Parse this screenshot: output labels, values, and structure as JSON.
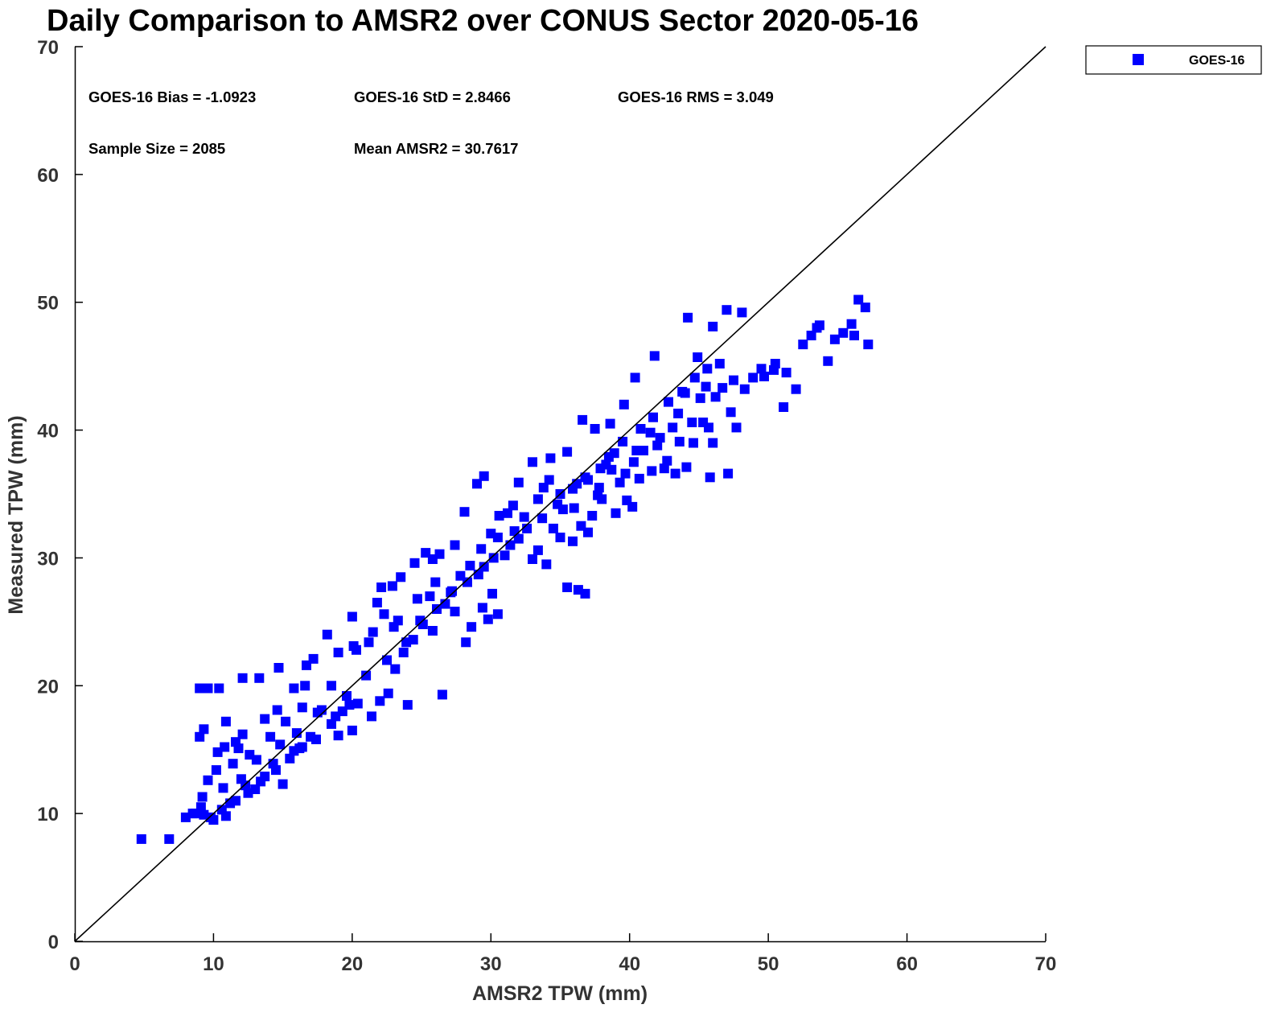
{
  "chart_data": {
    "type": "scatter",
    "title": "Daily Comparison to AMSR2 over CONUS Sector 2020-05-16",
    "xlabel": "AMSR2 TPW (mm)",
    "ylabel": "Measured TPW (mm)",
    "xlim": [
      0,
      70
    ],
    "ylim": [
      0,
      70
    ],
    "xticks": [
      0,
      10,
      20,
      30,
      40,
      50,
      60,
      70
    ],
    "yticks": [
      0,
      10,
      20,
      30,
      40,
      50,
      60,
      70
    ],
    "xtick_labels": [
      "0",
      "10",
      "20",
      "30",
      "40",
      "50",
      "60",
      "70"
    ],
    "ytick_labels": [
      "0",
      "10",
      "20",
      "30",
      "40",
      "50",
      "60",
      "70"
    ],
    "grid": false,
    "legend_position": "outside-top-right",
    "reference_line": {
      "name": "1:1 line",
      "x": [
        0,
        70
      ],
      "y": [
        0,
        70
      ],
      "color": "#000000"
    },
    "stats": {
      "bias": "GOES-16 Bias = -1.0923",
      "std": "GOES-16 StD = 2.8466",
      "rms": "GOES-16 RMS = 3.049",
      "sample_size": "Sample Size = 2085",
      "mean": "Mean AMSR2 = 30.7617"
    },
    "series": [
      {
        "name": "GOES-16",
        "color": "#0000ff",
        "marker": "square",
        "points": [
          [
            4.8,
            8.0
          ],
          [
            6.8,
            8.0
          ],
          [
            8.0,
            9.7
          ],
          [
            8.7,
            10.0
          ],
          [
            9.2,
            11.3
          ],
          [
            9.0,
            16.0
          ],
          [
            9.3,
            16.6
          ],
          [
            9.0,
            19.8
          ],
          [
            9.6,
            19.8
          ],
          [
            10.4,
            19.8
          ],
          [
            10.3,
            14.8
          ],
          [
            10.0,
            9.5
          ],
          [
            10.7,
            12.0
          ],
          [
            10.9,
            17.2
          ],
          [
            11.4,
            13.9
          ],
          [
            11.8,
            15.1
          ],
          [
            12.3,
            12.2
          ],
          [
            12.6,
            14.6
          ],
          [
            13.0,
            11.9
          ],
          [
            13.7,
            12.9
          ],
          [
            14.3,
            13.9
          ],
          [
            14.8,
            15.4
          ],
          [
            14.7,
            21.4
          ],
          [
            13.3,
            20.6
          ],
          [
            12.1,
            20.6
          ],
          [
            15.0,
            12.3
          ],
          [
            15.8,
            14.9
          ],
          [
            16.4,
            15.2
          ],
          [
            16.4,
            18.3
          ],
          [
            17.0,
            16.0
          ],
          [
            17.5,
            17.9
          ],
          [
            16.7,
            21.6
          ],
          [
            17.2,
            22.1
          ],
          [
            18.5,
            20.0
          ],
          [
            19.0,
            16.1
          ],
          [
            19.3,
            18.0
          ],
          [
            20.0,
            16.5
          ],
          [
            20.4,
            18.6
          ],
          [
            21.4,
            17.6
          ],
          [
            22.0,
            18.8
          ],
          [
            21.2,
            23.4
          ],
          [
            20.3,
            22.8
          ],
          [
            20.0,
            25.4
          ],
          [
            21.8,
            26.5
          ],
          [
            22.1,
            27.7
          ],
          [
            22.9,
            27.8
          ],
          [
            23.3,
            25.1
          ],
          [
            23.1,
            21.3
          ],
          [
            23.7,
            22.6
          ],
          [
            24.4,
            23.6
          ],
          [
            25.1,
            24.8
          ],
          [
            25.6,
            27.0
          ],
          [
            26.0,
            28.1
          ],
          [
            25.8,
            29.9
          ],
          [
            26.3,
            30.3
          ],
          [
            27.2,
            27.4
          ],
          [
            27.4,
            25.8
          ],
          [
            28.2,
            23.4
          ],
          [
            28.6,
            24.6
          ],
          [
            29.4,
            26.1
          ],
          [
            30.1,
            27.2
          ],
          [
            29.1,
            28.7
          ],
          [
            29.3,
            30.7
          ],
          [
            30.5,
            31.6
          ],
          [
            31.2,
            33.5
          ],
          [
            31.7,
            32.1
          ],
          [
            32.4,
            33.2
          ],
          [
            32.0,
            35.9
          ],
          [
            33.4,
            34.6
          ],
          [
            33.8,
            35.5
          ],
          [
            34.2,
            36.1
          ],
          [
            33.4,
            30.6
          ],
          [
            34.0,
            29.5
          ],
          [
            35.0,
            31.6
          ],
          [
            35.9,
            31.3
          ],
          [
            36.3,
            27.5
          ],
          [
            35.5,
            27.7
          ],
          [
            36.5,
            32.5
          ],
          [
            37.3,
            33.3
          ],
          [
            37.0,
            36.1
          ],
          [
            37.8,
            35.5
          ],
          [
            38.3,
            37.3
          ],
          [
            38.7,
            36.9
          ],
          [
            39.3,
            35.9
          ],
          [
            39.8,
            34.5
          ],
          [
            40.2,
            34.0
          ],
          [
            40.3,
            37.5
          ],
          [
            41.0,
            38.4
          ],
          [
            41.6,
            36.8
          ],
          [
            42.2,
            39.4
          ],
          [
            43.1,
            40.2
          ],
          [
            42.7,
            37.6
          ],
          [
            43.6,
            39.1
          ],
          [
            44.1,
            37.1
          ],
          [
            44.6,
            39.0
          ],
          [
            45.3,
            40.6
          ],
          [
            45.1,
            42.5
          ],
          [
            45.7,
            40.2
          ],
          [
            46.2,
            42.6
          ],
          [
            46.7,
            43.3
          ],
          [
            47.3,
            41.4
          ],
          [
            47.1,
            36.6
          ],
          [
            45.8,
            36.3
          ],
          [
            47.7,
            40.2
          ],
          [
            48.3,
            43.2
          ],
          [
            48.9,
            44.1
          ],
          [
            49.7,
            44.2
          ],
          [
            50.4,
            44.7
          ],
          [
            51.3,
            44.5
          ],
          [
            52.0,
            43.2
          ],
          [
            51.1,
            41.8
          ],
          [
            52.5,
            46.7
          ],
          [
            53.1,
            47.4
          ],
          [
            53.7,
            48.2
          ],
          [
            54.3,
            45.4
          ],
          [
            55.4,
            47.6
          ],
          [
            56.0,
            48.3
          ],
          [
            56.5,
            50.2
          ],
          [
            57.0,
            49.6
          ],
          [
            57.2,
            46.7
          ],
          [
            56.2,
            47.4
          ],
          [
            44.2,
            48.8
          ],
          [
            46.0,
            48.1
          ],
          [
            47.0,
            49.4
          ],
          [
            48.1,
            49.2
          ],
          [
            44.9,
            45.7
          ],
          [
            41.8,
            45.8
          ],
          [
            40.4,
            44.1
          ],
          [
            39.6,
            42.0
          ],
          [
            38.6,
            40.5
          ],
          [
            37.5,
            40.1
          ],
          [
            36.6,
            40.8
          ],
          [
            35.5,
            38.3
          ],
          [
            34.3,
            37.8
          ],
          [
            33.0,
            37.5
          ],
          [
            31.6,
            34.1
          ],
          [
            30.6,
            33.3
          ],
          [
            29.0,
            35.8
          ],
          [
            29.5,
            36.4
          ],
          [
            28.1,
            33.6
          ],
          [
            27.4,
            31.0
          ],
          [
            25.3,
            30.4
          ],
          [
            24.5,
            29.6
          ],
          [
            23.5,
            28.5
          ],
          [
            20.1,
            23.1
          ],
          [
            19.0,
            22.6
          ],
          [
            18.2,
            24.0
          ],
          [
            16.6,
            20.0
          ],
          [
            15.8,
            19.8
          ],
          [
            14.6,
            18.1
          ],
          [
            13.7,
            17.4
          ],
          [
            12.1,
            16.2
          ],
          [
            11.6,
            15.6
          ],
          [
            10.8,
            15.2
          ],
          [
            10.2,
            13.4
          ],
          [
            9.6,
            12.6
          ],
          [
            9.1,
            10.5
          ],
          [
            8.5,
            10.0
          ],
          [
            9.8,
            9.7
          ],
          [
            10.9,
            9.8
          ],
          [
            11.6,
            11.0
          ],
          [
            12.0,
            12.7
          ],
          [
            13.1,
            14.2
          ],
          [
            14.1,
            16.0
          ],
          [
            15.2,
            17.2
          ],
          [
            16.0,
            16.3
          ],
          [
            17.8,
            18.1
          ],
          [
            18.5,
            17.0
          ],
          [
            19.6,
            19.2
          ],
          [
            21.0,
            20.8
          ],
          [
            22.5,
            22.0
          ],
          [
            23.9,
            23.4
          ],
          [
            24.9,
            25.1
          ],
          [
            26.1,
            26.0
          ],
          [
            27.1,
            27.3
          ],
          [
            28.3,
            28.1
          ],
          [
            29.5,
            29.3
          ],
          [
            30.2,
            30.0
          ],
          [
            31.4,
            31.0
          ],
          [
            32.6,
            32.3
          ],
          [
            33.7,
            33.1
          ],
          [
            34.8,
            34.2
          ],
          [
            35.9,
            35.4
          ],
          [
            36.8,
            36.3
          ],
          [
            37.9,
            37.0
          ],
          [
            38.9,
            38.2
          ],
          [
            39.5,
            39.1
          ],
          [
            40.8,
            40.1
          ],
          [
            41.7,
            41.0
          ],
          [
            42.8,
            42.2
          ],
          [
            43.8,
            43.0
          ],
          [
            44.7,
            44.1
          ],
          [
            45.6,
            44.8
          ],
          [
            46.5,
            45.2
          ],
          [
            35.0,
            35.0
          ],
          [
            34.5,
            32.3
          ],
          [
            36.0,
            33.9
          ],
          [
            37.0,
            32.0
          ],
          [
            38.0,
            34.6
          ],
          [
            39.0,
            33.5
          ],
          [
            38.5,
            37.9
          ],
          [
            40.5,
            38.4
          ],
          [
            41.5,
            39.8
          ],
          [
            42.5,
            37.0
          ],
          [
            43.5,
            41.3
          ],
          [
            44.0,
            42.9
          ],
          [
            45.5,
            43.4
          ],
          [
            46.0,
            39.0
          ],
          [
            32.0,
            31.5
          ],
          [
            33.0,
            29.9
          ],
          [
            31.0,
            30.2
          ],
          [
            30.0,
            31.9
          ],
          [
            28.5,
            29.4
          ],
          [
            27.8,
            28.6
          ],
          [
            26.7,
            26.4
          ],
          [
            25.8,
            24.3
          ],
          [
            24.7,
            26.8
          ],
          [
            23.0,
            24.6
          ],
          [
            22.3,
            25.6
          ],
          [
            21.5,
            24.2
          ],
          [
            19.8,
            18.5
          ],
          [
            18.8,
            17.6
          ],
          [
            17.4,
            15.8
          ],
          [
            16.2,
            15.1
          ],
          [
            15.5,
            14.3
          ],
          [
            14.5,
            13.4
          ],
          [
            13.4,
            12.5
          ],
          [
            12.5,
            11.6
          ],
          [
            11.2,
            10.8
          ],
          [
            10.6,
            10.3
          ],
          [
            9.3,
            9.9
          ],
          [
            35.2,
            33.8
          ],
          [
            36.2,
            35.8
          ],
          [
            37.7,
            34.9
          ],
          [
            39.7,
            36.6
          ],
          [
            40.7,
            36.2
          ],
          [
            42.0,
            38.8
          ],
          [
            43.3,
            36.6
          ],
          [
            44.5,
            40.6
          ],
          [
            47.5,
            43.9
          ],
          [
            49.5,
            44.8
          ],
          [
            50.5,
            45.2
          ],
          [
            53.5,
            48.0
          ],
          [
            54.8,
            47.1
          ],
          [
            36.8,
            27.2
          ],
          [
            29.8,
            25.2
          ],
          [
            30.5,
            25.6
          ],
          [
            26.5,
            19.3
          ],
          [
            24.0,
            18.5
          ],
          [
            22.6,
            19.4
          ]
        ]
      }
    ]
  }
}
